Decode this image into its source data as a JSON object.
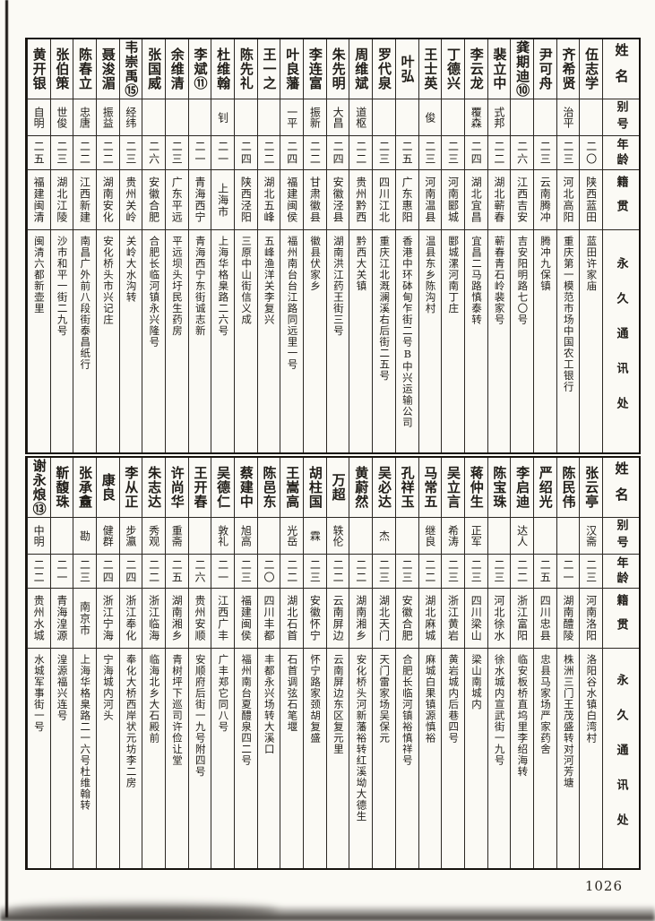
{
  "page": {
    "number": "1026"
  },
  "column_headers": {
    "name": "姓名",
    "alias": "别号",
    "age": "年龄",
    "origin": "籍贯",
    "address": "永久通讯处"
  },
  "tables": [
    {
      "persons": [
        {
          "name": "伍志学",
          "alias": "",
          "age": "二〇",
          "origin": "陕西蓝田",
          "address": "蓝田许家庙"
        },
        {
          "name": "齐希贤",
          "alias": "治平",
          "age": "二三",
          "origin": "河北高阳",
          "address": "重庆第一模范市场中国农工银行"
        },
        {
          "name": "尹可舟",
          "alias": "",
          "age": "二三",
          "origin": "云南腾冲",
          "address": "腾冲九保镇"
        },
        {
          "name": "龚期迪⑩",
          "alias": "",
          "age": "二六",
          "origin": "江西吉安",
          "address": "吉安阳明路七〇号"
        },
        {
          "name": "裴立中",
          "alias": "式邦",
          "age": "二二",
          "origin": "湖北蕲春",
          "address": "蕲春青石岭裴家号"
        },
        {
          "name": "李云龙",
          "alias": "覆森",
          "age": "二四",
          "origin": "湖北宜昌",
          "address": "宜昌二马路慎泰转"
        },
        {
          "name": "丁德兴",
          "alias": "",
          "age": "二三",
          "origin": "河南郾城",
          "address": "郾城漯河南丁庄"
        },
        {
          "name": "王士英",
          "alias": "俊",
          "age": "二三",
          "origin": "河南温县",
          "address": "温县东乡陈沟村"
        },
        {
          "name": "叶弘",
          "alias": "",
          "age": "二五",
          "origin": "广东惠阳",
          "address": "香港中环砵甸乍街二号B中兴运输公司"
        },
        {
          "name": "罗代泉",
          "alias": "",
          "age": "二三",
          "origin": "四川江北",
          "address": "重庆江北溉澜溪右后街二五号"
        },
        {
          "name": "周维斌",
          "alias": "道枢",
          "age": "二二",
          "origin": "贵州黔西",
          "address": "黔西大关镇"
        },
        {
          "name": "朱先明",
          "alias": "大昌",
          "age": "二四",
          "origin": "安徽泾县",
          "address": "湖南洪江药王街三号"
        },
        {
          "name": "李连富",
          "alias": "振新",
          "age": "二二",
          "origin": "甘肃徽县",
          "address": "徽县伏家乡"
        },
        {
          "name": "叶良藩",
          "alias": "一平",
          "age": "二四",
          "origin": "福建闽侯",
          "address": "福州南台台江路同远里一号"
        },
        {
          "name": "王一之",
          "alias": "",
          "age": "二二",
          "origin": "湖北五峰",
          "address": "五峰渔洋关李复兴"
        },
        {
          "name": "陈先礼",
          "alias": "",
          "age": "二四",
          "origin": "陕西泾阳",
          "address": "三原中山街信义成"
        },
        {
          "name": "杜维翰",
          "alias": "钊",
          "age": "二一",
          "origin": "上海市",
          "address": "上海华格臬路二六号"
        },
        {
          "name": "李斌⑪",
          "alias": "",
          "age": "二一",
          "origin": "青海西宁",
          "address": "青海西宁东街诚志新"
        },
        {
          "name": "余维清",
          "alias": "",
          "age": "二三",
          "origin": "广东平远",
          "address": "平远坝头圩民生药房"
        },
        {
          "name": "张国威",
          "alias": "",
          "age": "二六",
          "origin": "安徽合肥",
          "address": "合肥长临河镇永兴隆号"
        },
        {
          "name": "韦崇禹⑮",
          "alias": "经纬",
          "age": "二三",
          "origin": "贵州关岭",
          "address": "关岭大水沟转"
        },
        {
          "name": "聂浚湄",
          "alias": "振益",
          "age": "二二",
          "origin": "湖南安化",
          "address": "安化桥头市兴记庄"
        },
        {
          "name": "陈春立",
          "alias": "忠唐",
          "age": "二二",
          "origin": "江西新建",
          "address": "南昌广外前八段街泰昌纸行"
        },
        {
          "name": "张伯策",
          "alias": "世俊",
          "age": "二三",
          "origin": "湖北江陵",
          "address": "沙市和平一街二九号"
        },
        {
          "name": "黄开银",
          "alias": "自明",
          "age": "二五",
          "origin": "福建闽清",
          "address": "闽清六都新壶里"
        }
      ]
    },
    {
      "persons": [
        {
          "name": "张云亭",
          "alias": "汉斋",
          "age": "二三",
          "origin": "河南洛阳",
          "address": "洛阳谷水镇白湾村"
        },
        {
          "name": "陈民伟",
          "alias": "",
          "age": "二一",
          "origin": "湖南醴陵",
          "address": "株洲三门王茂盛转对河芳塘"
        },
        {
          "name": "严绍光",
          "alias": "",
          "age": "二五",
          "origin": "四川忠县",
          "address": "忠县马家场严家药舍"
        },
        {
          "name": "李启迪",
          "alias": "达人",
          "age": "二二",
          "origin": "浙江富阳",
          "address": "临安板桥直坞里李绍海转"
        },
        {
          "name": "陈宝珠",
          "alias": "",
          "age": "二三",
          "origin": "河北徐水",
          "address": "徐水城内宣武街一九号"
        },
        {
          "name": "蒋仲生",
          "alias": "正军",
          "age": "二三",
          "origin": "四川梁山",
          "address": "梁山南城内"
        },
        {
          "name": "吴立言",
          "alias": "希涛",
          "age": "二三",
          "origin": "浙江黄岩",
          "address": "黄岩城内后巷四号"
        },
        {
          "name": "马常五",
          "alias": "继良",
          "age": "二二",
          "origin": "湖北麻城",
          "address": "麻城白果镇源慎裕"
        },
        {
          "name": "孔祥玉",
          "alias": "",
          "age": "二三",
          "origin": "安徽合肥",
          "address": "合肥长临河镇裕慎祥号"
        },
        {
          "name": "吴必达",
          "alias": "杰",
          "age": "二三",
          "origin": "湖北天门",
          "address": "天门雷家场吴保元"
        },
        {
          "name": "黄蔚然",
          "alias": "",
          "age": "二二",
          "origin": "湖南湘乡",
          "address": "安化桥头河新藩裕转红溪坳大德生"
        },
        {
          "name": "万超",
          "alias": "轶伦",
          "age": "二二",
          "origin": "云南屏边",
          "address": "云南屏边东区复元里"
        },
        {
          "name": "胡柱国",
          "alias": "霖",
          "age": "二三",
          "origin": "安徽怀宁",
          "address": "怀宁路家颈胡复盛"
        },
        {
          "name": "王嵩高",
          "alias": "光岳",
          "age": "二二",
          "origin": "湖北石首",
          "address": "石首调弦石笔堰"
        },
        {
          "name": "陈邑东",
          "alias": "",
          "age": "二〇",
          "origin": "四川丰都",
          "address": "丰都永兴场转大溪口"
        },
        {
          "name": "蔡建中",
          "alias": "旭高",
          "age": "二三",
          "origin": "福建闽侯",
          "address": "福州南台夏醴泉四二号"
        },
        {
          "name": "吴德仁",
          "alias": "敦礼",
          "age": "二一",
          "origin": "江西广丰",
          "address": "广丰郑它同八号"
        },
        {
          "name": "王开春",
          "alias": "",
          "age": "二六",
          "origin": "贵州安顺",
          "address": "安顺府后街一九号附四号"
        },
        {
          "name": "许尚华",
          "alias": "重斋",
          "age": "二五",
          "origin": "湖南湘乡",
          "address": "青树坪下巡司许俭让堂"
        },
        {
          "name": "朱志达",
          "alias": "秀观",
          "age": "二二",
          "origin": "浙江临海",
          "address": "临海北乡大石殿前"
        },
        {
          "name": "李从正",
          "alias": "步瀛",
          "age": "二四",
          "origin": "浙江奉化",
          "address": "奉化大桥西岸状元坊李二房"
        },
        {
          "name": "康良",
          "alias": "健群",
          "age": "二四",
          "origin": "浙江宁海",
          "address": "宁海城内河头"
        },
        {
          "name": "张承盫",
          "alias": "勘",
          "age": "二三",
          "origin": "南京市",
          "address": "上海华格臬路二一六号杜维翰转"
        },
        {
          "name": "靳馥珠",
          "alias": "",
          "age": "二一",
          "origin": "青海湟源",
          "address": "湟源福兴连号"
        },
        {
          "name": "谢永烺⑬",
          "alias": "中明",
          "age": "二二",
          "origin": "贵州水城",
          "address": "水城军事街一号"
        }
      ]
    }
  ]
}
